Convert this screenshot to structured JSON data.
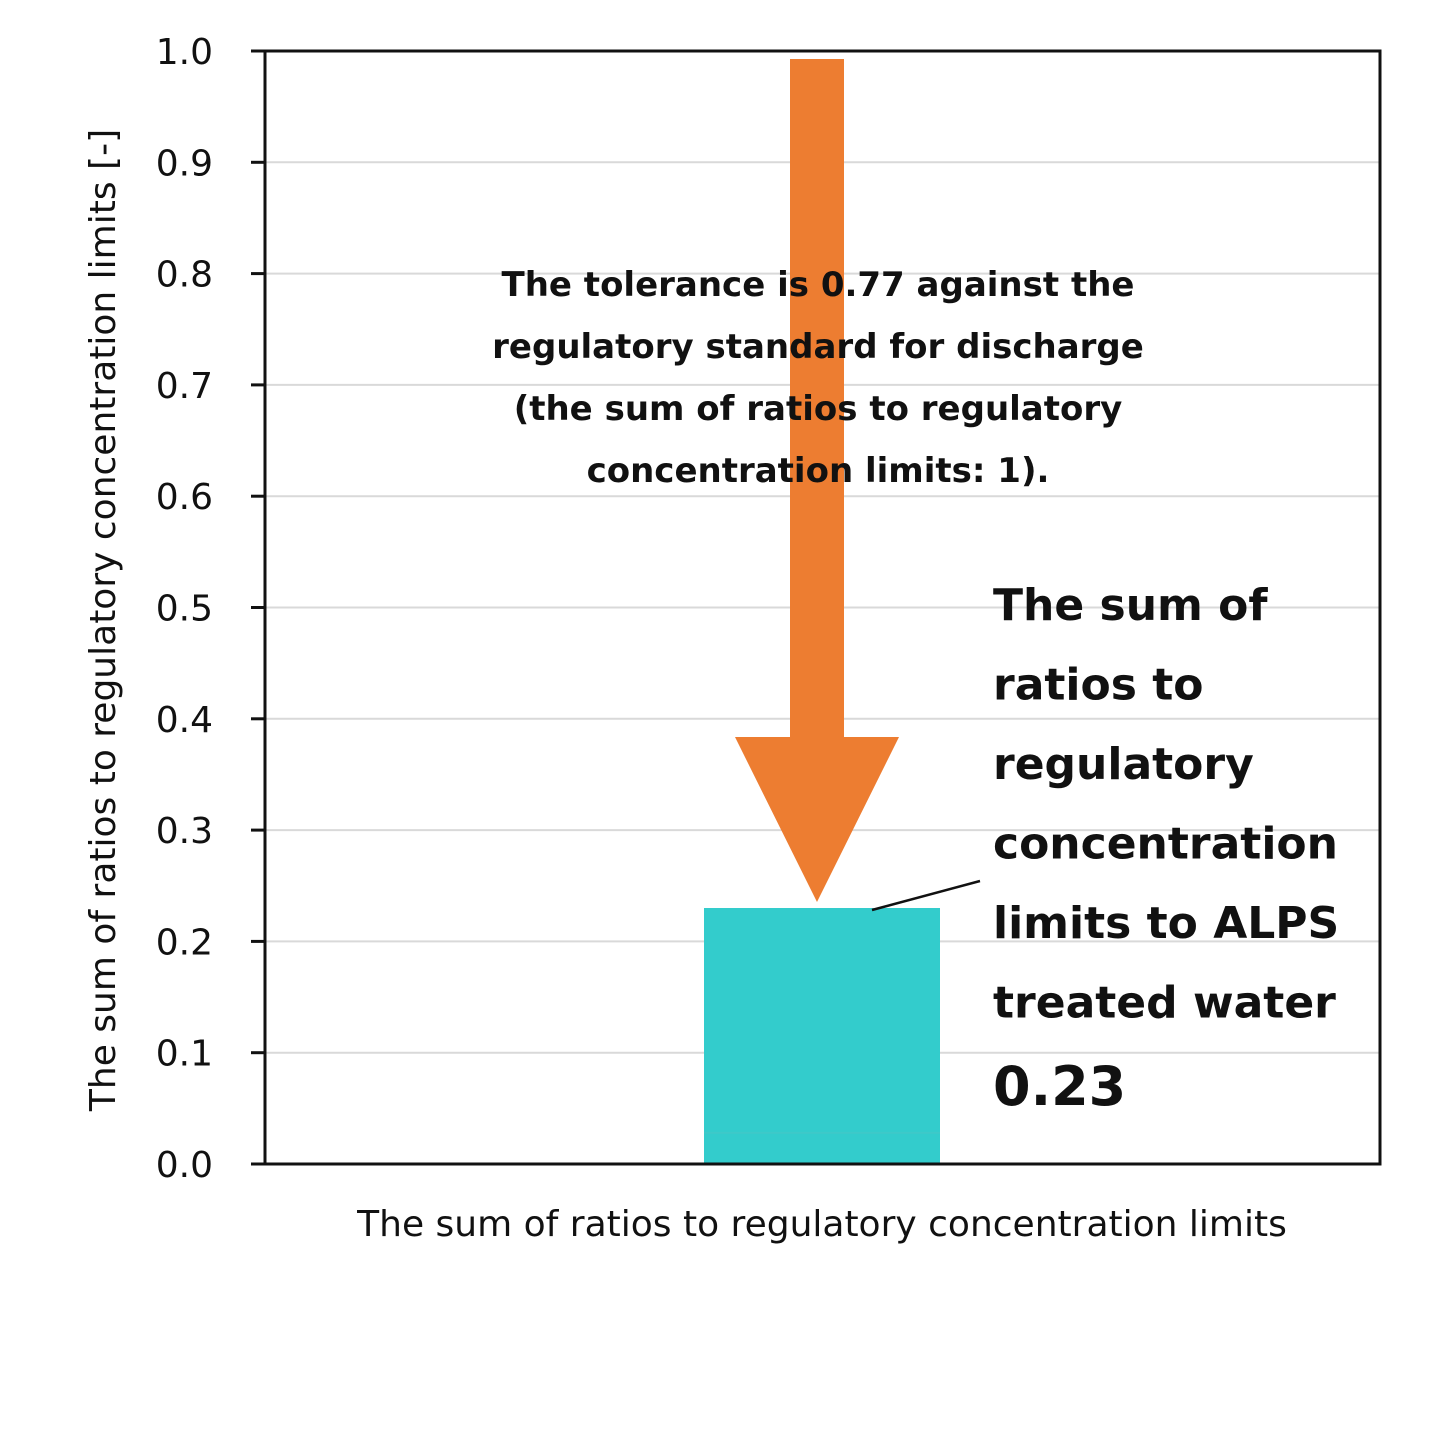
{
  "chart_data": {
    "type": "bar",
    "categories": [
      "The sum of ratios to regulatory concentration limits"
    ],
    "values": [
      0.23
    ],
    "xlabel": "The sum of ratios to regulatory concentration limits",
    "ylabel": "The sum of ratios to regulatory concentration limits [-]",
    "ylim": [
      0,
      1.0
    ],
    "yticks": [
      "0.0",
      "0.1",
      "0.2",
      "0.3",
      "0.4",
      "0.5",
      "0.6",
      "0.7",
      "0.8",
      "0.9",
      "1.0"
    ],
    "grid": true,
    "bar_color": "#33CCCC",
    "arrow": {
      "from": 1.0,
      "to": 0.23,
      "color": "#ED7D31"
    },
    "annotations": {
      "tolerance_lines": [
        "The tolerance is 0.77 against the",
        "regulatory standard for discharge",
        "(the sum of ratios to regulatory",
        "concentration limits: 1)."
      ],
      "value_label_lines": [
        "The sum of",
        "ratios to",
        "regulatory",
        "concentration",
        "limits to ALPS",
        "treated water"
      ],
      "value_label_number": "0.23"
    }
  }
}
